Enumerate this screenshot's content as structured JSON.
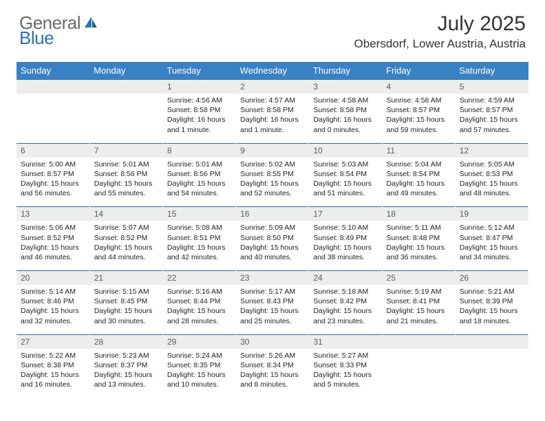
{
  "brand": {
    "part1": "General",
    "part2": "Blue"
  },
  "title": "July 2025",
  "location": "Obersdorf, Lower Austria, Austria",
  "colors": {
    "header_bg": "#3a81c4",
    "header_text": "#ffffff",
    "daynum_bg": "#eceeee",
    "border": "#2a6fab",
    "brand_gray": "#6a6a6a",
    "brand_blue": "#2a73b8",
    "text": "#222222"
  },
  "day_headers": [
    "Sunday",
    "Monday",
    "Tuesday",
    "Wednesday",
    "Thursday",
    "Friday",
    "Saturday"
  ],
  "weeks": [
    [
      null,
      null,
      {
        "n": "1",
        "sr": "Sunrise: 4:56 AM",
        "ss": "Sunset: 8:58 PM",
        "dl": "Daylight: 16 hours and 1 minute."
      },
      {
        "n": "2",
        "sr": "Sunrise: 4:57 AM",
        "ss": "Sunset: 8:58 PM",
        "dl": "Daylight: 16 hours and 1 minute."
      },
      {
        "n": "3",
        "sr": "Sunrise: 4:58 AM",
        "ss": "Sunset: 8:58 PM",
        "dl": "Daylight: 16 hours and 0 minutes."
      },
      {
        "n": "4",
        "sr": "Sunrise: 4:58 AM",
        "ss": "Sunset: 8:57 PM",
        "dl": "Daylight: 15 hours and 59 minutes."
      },
      {
        "n": "5",
        "sr": "Sunrise: 4:59 AM",
        "ss": "Sunset: 8:57 PM",
        "dl": "Daylight: 15 hours and 57 minutes."
      }
    ],
    [
      {
        "n": "6",
        "sr": "Sunrise: 5:00 AM",
        "ss": "Sunset: 8:57 PM",
        "dl": "Daylight: 15 hours and 56 minutes."
      },
      {
        "n": "7",
        "sr": "Sunrise: 5:01 AM",
        "ss": "Sunset: 8:56 PM",
        "dl": "Daylight: 15 hours and 55 minutes."
      },
      {
        "n": "8",
        "sr": "Sunrise: 5:01 AM",
        "ss": "Sunset: 8:56 PM",
        "dl": "Daylight: 15 hours and 54 minutes."
      },
      {
        "n": "9",
        "sr": "Sunrise: 5:02 AM",
        "ss": "Sunset: 8:55 PM",
        "dl": "Daylight: 15 hours and 52 minutes."
      },
      {
        "n": "10",
        "sr": "Sunrise: 5:03 AM",
        "ss": "Sunset: 8:54 PM",
        "dl": "Daylight: 15 hours and 51 minutes."
      },
      {
        "n": "11",
        "sr": "Sunrise: 5:04 AM",
        "ss": "Sunset: 8:54 PM",
        "dl": "Daylight: 15 hours and 49 minutes."
      },
      {
        "n": "12",
        "sr": "Sunrise: 5:05 AM",
        "ss": "Sunset: 8:53 PM",
        "dl": "Daylight: 15 hours and 48 minutes."
      }
    ],
    [
      {
        "n": "13",
        "sr": "Sunrise: 5:06 AM",
        "ss": "Sunset: 8:52 PM",
        "dl": "Daylight: 15 hours and 46 minutes."
      },
      {
        "n": "14",
        "sr": "Sunrise: 5:07 AM",
        "ss": "Sunset: 8:52 PM",
        "dl": "Daylight: 15 hours and 44 minutes."
      },
      {
        "n": "15",
        "sr": "Sunrise: 5:08 AM",
        "ss": "Sunset: 8:51 PM",
        "dl": "Daylight: 15 hours and 42 minutes."
      },
      {
        "n": "16",
        "sr": "Sunrise: 5:09 AM",
        "ss": "Sunset: 8:50 PM",
        "dl": "Daylight: 15 hours and 40 minutes."
      },
      {
        "n": "17",
        "sr": "Sunrise: 5:10 AM",
        "ss": "Sunset: 8:49 PM",
        "dl": "Daylight: 15 hours and 38 minutes."
      },
      {
        "n": "18",
        "sr": "Sunrise: 5:11 AM",
        "ss": "Sunset: 8:48 PM",
        "dl": "Daylight: 15 hours and 36 minutes."
      },
      {
        "n": "19",
        "sr": "Sunrise: 5:12 AM",
        "ss": "Sunset: 8:47 PM",
        "dl": "Daylight: 15 hours and 34 minutes."
      }
    ],
    [
      {
        "n": "20",
        "sr": "Sunrise: 5:14 AM",
        "ss": "Sunset: 8:46 PM",
        "dl": "Daylight: 15 hours and 32 minutes."
      },
      {
        "n": "21",
        "sr": "Sunrise: 5:15 AM",
        "ss": "Sunset: 8:45 PM",
        "dl": "Daylight: 15 hours and 30 minutes."
      },
      {
        "n": "22",
        "sr": "Sunrise: 5:16 AM",
        "ss": "Sunset: 8:44 PM",
        "dl": "Daylight: 15 hours and 28 minutes."
      },
      {
        "n": "23",
        "sr": "Sunrise: 5:17 AM",
        "ss": "Sunset: 8:43 PM",
        "dl": "Daylight: 15 hours and 25 minutes."
      },
      {
        "n": "24",
        "sr": "Sunrise: 5:18 AM",
        "ss": "Sunset: 8:42 PM",
        "dl": "Daylight: 15 hours and 23 minutes."
      },
      {
        "n": "25",
        "sr": "Sunrise: 5:19 AM",
        "ss": "Sunset: 8:41 PM",
        "dl": "Daylight: 15 hours and 21 minutes."
      },
      {
        "n": "26",
        "sr": "Sunrise: 5:21 AM",
        "ss": "Sunset: 8:39 PM",
        "dl": "Daylight: 15 hours and 18 minutes."
      }
    ],
    [
      {
        "n": "27",
        "sr": "Sunrise: 5:22 AM",
        "ss": "Sunset: 8:38 PM",
        "dl": "Daylight: 15 hours and 16 minutes."
      },
      {
        "n": "28",
        "sr": "Sunrise: 5:23 AM",
        "ss": "Sunset: 8:37 PM",
        "dl": "Daylight: 15 hours and 13 minutes."
      },
      {
        "n": "29",
        "sr": "Sunrise: 5:24 AM",
        "ss": "Sunset: 8:35 PM",
        "dl": "Daylight: 15 hours and 10 minutes."
      },
      {
        "n": "30",
        "sr": "Sunrise: 5:26 AM",
        "ss": "Sunset: 8:34 PM",
        "dl": "Daylight: 15 hours and 8 minutes."
      },
      {
        "n": "31",
        "sr": "Sunrise: 5:27 AM",
        "ss": "Sunset: 8:33 PM",
        "dl": "Daylight: 15 hours and 5 minutes."
      },
      null,
      null
    ]
  ]
}
